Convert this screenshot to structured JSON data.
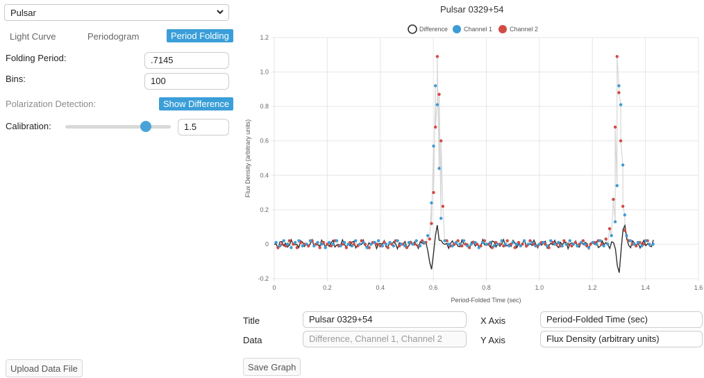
{
  "dataset_select": {
    "value": "Pulsar"
  },
  "tabs": [
    {
      "label": "Light Curve",
      "active": false
    },
    {
      "label": "Periodogram",
      "active": false
    },
    {
      "label": "Period Folding",
      "active": true
    }
  ],
  "controls": {
    "folding_period_label": "Folding Period:",
    "folding_period_value": ".7145",
    "bins_label": "Bins:",
    "bins_value": "100",
    "polarization_label": "Polarization Detection:",
    "show_difference_label": "Show Difference",
    "calibration_label": "Calibration:",
    "calibration_value": "1.5",
    "calibration_slider_fraction": 0.76
  },
  "upload_button_label": "Upload Data File",
  "save_button_label": "Save Graph",
  "form": {
    "title_label": "Title",
    "title_value": "Pulsar 0329+54",
    "data_label": "Data",
    "data_placeholder": "Difference, Channel 1, Channel 2",
    "xaxis_label": "X Axis",
    "xaxis_value": "Period-Folded Time (sec)",
    "yaxis_label": "Y Axis",
    "yaxis_value": "Flux Density (arbitrary units)"
  },
  "colors": {
    "accent": "#3a9ed8",
    "channel1": "#3d9bd6",
    "channel2": "#d24a43",
    "difference": "#2f2f2f"
  },
  "chart_data": {
    "type": "scatter",
    "title": "Pulsar 0329+54",
    "xlabel": "Period-Folded Time (sec)",
    "ylabel": "Flux Density (arbitrary units)",
    "xlim": [
      0,
      1.6
    ],
    "ylim": [
      -0.2,
      1.2
    ],
    "xticks": [
      0,
      0.2,
      0.4,
      0.6,
      0.8,
      1.0,
      1.2,
      1.4,
      1.6
    ],
    "xtick_labels": [
      "0",
      "0.2",
      "0.4",
      "0.6",
      "0.8",
      "1.0",
      "1.2",
      "1.4",
      "1.6"
    ],
    "yticks": [
      -0.2,
      0,
      0.2,
      0.4,
      0.6,
      0.8,
      1.0,
      1.2
    ],
    "ytick_labels": [
      "-0.2",
      "0",
      "0.2",
      "0.4",
      "0.6",
      "0.8",
      "1.0",
      "1.2"
    ],
    "grid": true,
    "legend_position": "top-center",
    "series": [
      {
        "name": "Difference",
        "style": "line",
        "x": [],
        "y": []
      },
      {
        "name": "Channel 1",
        "style": "points",
        "x": [
          0.007,
          0.021,
          0.036,
          0.05,
          0.064,
          0.079,
          0.093,
          0.107,
          0.122,
          0.136,
          0.15,
          0.164,
          0.179,
          0.193,
          0.207,
          0.222,
          0.236,
          0.25,
          0.265,
          0.279,
          0.293,
          0.307,
          0.322,
          0.336,
          0.35,
          0.365,
          0.379,
          0.393,
          0.408,
          0.422,
          0.436,
          0.45,
          0.465,
          0.479,
          0.493,
          0.508,
          0.522,
          0.536,
          0.55,
          0.565,
          0.579,
          0.593,
          0.601,
          0.608,
          0.615,
          0.622,
          0.629,
          0.643,
          0.658,
          0.672,
          0.686,
          0.7,
          0.715,
          0.729,
          0.743,
          0.758,
          0.772,
          0.786,
          0.8,
          0.815,
          0.829,
          0.843,
          0.858,
          0.872,
          0.886,
          0.9,
          0.915,
          0.929,
          0.943,
          0.958,
          0.972,
          0.986,
          1.0,
          1.015,
          1.029,
          1.043,
          1.058,
          1.072,
          1.086,
          1.101,
          1.115,
          1.129,
          1.143,
          1.158,
          1.172,
          1.186,
          1.201,
          1.215,
          1.229,
          1.243,
          1.258,
          1.272,
          1.286,
          1.293,
          1.3,
          1.307,
          1.315,
          1.322,
          1.329,
          1.343,
          1.358,
          1.372,
          1.386,
          1.401,
          1.415,
          1.429
        ],
        "y": [
          0.01,
          -0.01,
          0.02,
          0.0,
          -0.02,
          0.01,
          0.02,
          -0.01,
          0.0,
          0.02,
          -0.01,
          0.01,
          0.0,
          -0.02,
          0.01,
          0.0,
          0.02,
          -0.01,
          0.01,
          0.0,
          -0.01,
          0.02,
          0.0,
          0.01,
          -0.02,
          0.0,
          0.01,
          0.02,
          -0.01,
          0.0,
          0.01,
          -0.01,
          0.02,
          0.0,
          -0.01,
          0.01,
          0.0,
          0.02,
          -0.01,
          0.01,
          0.05,
          0.24,
          0.57,
          0.92,
          0.81,
          0.44,
          0.15,
          0.02,
          0.0,
          -0.01,
          0.01,
          0.0,
          0.02,
          -0.01,
          0.0,
          0.01,
          -0.02,
          0.01,
          0.0,
          0.01,
          -0.01,
          0.0,
          0.02,
          0.0,
          -0.01,
          0.01,
          0.0,
          -0.01,
          0.02,
          0.0,
          0.01,
          -0.01,
          0.0,
          0.01,
          -0.01,
          0.02,
          0.0,
          0.01,
          -0.01,
          0.0,
          0.02,
          0.0,
          -0.01,
          0.01,
          0.0,
          -0.02,
          0.01,
          0.0,
          0.02,
          -0.01,
          0.0,
          0.05,
          0.13,
          0.34,
          0.92,
          0.81,
          0.46,
          0.17,
          0.05,
          0.02,
          0.0,
          0.01,
          -0.01,
          0.02,
          0.0,
          0.0
        ]
      },
      {
        "name": "Channel 2",
        "style": "points",
        "x": [
          0.014,
          0.029,
          0.043,
          0.057,
          0.072,
          0.086,
          0.1,
          0.115,
          0.129,
          0.143,
          0.157,
          0.172,
          0.186,
          0.2,
          0.215,
          0.229,
          0.243,
          0.258,
          0.272,
          0.286,
          0.3,
          0.315,
          0.329,
          0.343,
          0.358,
          0.372,
          0.386,
          0.4,
          0.415,
          0.429,
          0.443,
          0.458,
          0.472,
          0.486,
          0.5,
          0.515,
          0.529,
          0.543,
          0.558,
          0.572,
          0.586,
          0.593,
          0.601,
          0.608,
          0.615,
          0.622,
          0.629,
          0.636,
          0.651,
          0.665,
          0.679,
          0.693,
          0.708,
          0.722,
          0.736,
          0.751,
          0.765,
          0.779,
          0.793,
          0.808,
          0.822,
          0.836,
          0.851,
          0.865,
          0.879,
          0.893,
          0.908,
          0.922,
          0.936,
          0.951,
          0.965,
          0.979,
          0.993,
          1.008,
          1.022,
          1.036,
          1.051,
          1.065,
          1.079,
          1.093,
          1.108,
          1.122,
          1.136,
          1.151,
          1.165,
          1.179,
          1.193,
          1.208,
          1.222,
          1.236,
          1.251,
          1.265,
          1.279,
          1.286,
          1.293,
          1.3,
          1.307,
          1.315,
          1.322,
          1.336,
          1.351,
          1.365,
          1.379,
          1.393,
          1.408
        ],
        "y": [
          -0.02,
          0.0,
          -0.01,
          0.02,
          0.0,
          -0.02,
          0.01,
          0.0,
          -0.01,
          0.02,
          0.0,
          -0.02,
          0.01,
          0.0,
          -0.01,
          0.02,
          -0.01,
          0.0,
          -0.02,
          0.01,
          0.0,
          -0.01,
          0.02,
          0.0,
          -0.02,
          0.01,
          0.0,
          -0.01,
          0.01,
          -0.02,
          0.0,
          0.02,
          -0.01,
          0.0,
          -0.02,
          0.01,
          0.0,
          -0.01,
          0.02,
          0.01,
          0.03,
          0.12,
          0.3,
          0.68,
          1.09,
          0.87,
          0.6,
          0.22,
          0.02,
          -0.01,
          0.0,
          0.02,
          -0.01,
          0.0,
          -0.02,
          0.01,
          0.0,
          -0.01,
          0.02,
          0.0,
          -0.02,
          0.01,
          0.0,
          -0.01,
          0.02,
          0.0,
          -0.02,
          0.01,
          0.0,
          -0.01,
          0.02,
          0.0,
          -0.01,
          0.01,
          0.0,
          -0.02,
          0.01,
          0.0,
          -0.01,
          0.02,
          0.0,
          -0.01,
          0.01,
          0.0,
          0.02,
          -0.01,
          0.0,
          0.01,
          0.02,
          0.0,
          0.03,
          0.09,
          0.26,
          0.68,
          1.09,
          0.88,
          0.6,
          0.22,
          0.08,
          0.02,
          0.0,
          -0.01,
          0.01,
          0.0,
          0.02
        ]
      }
    ]
  }
}
